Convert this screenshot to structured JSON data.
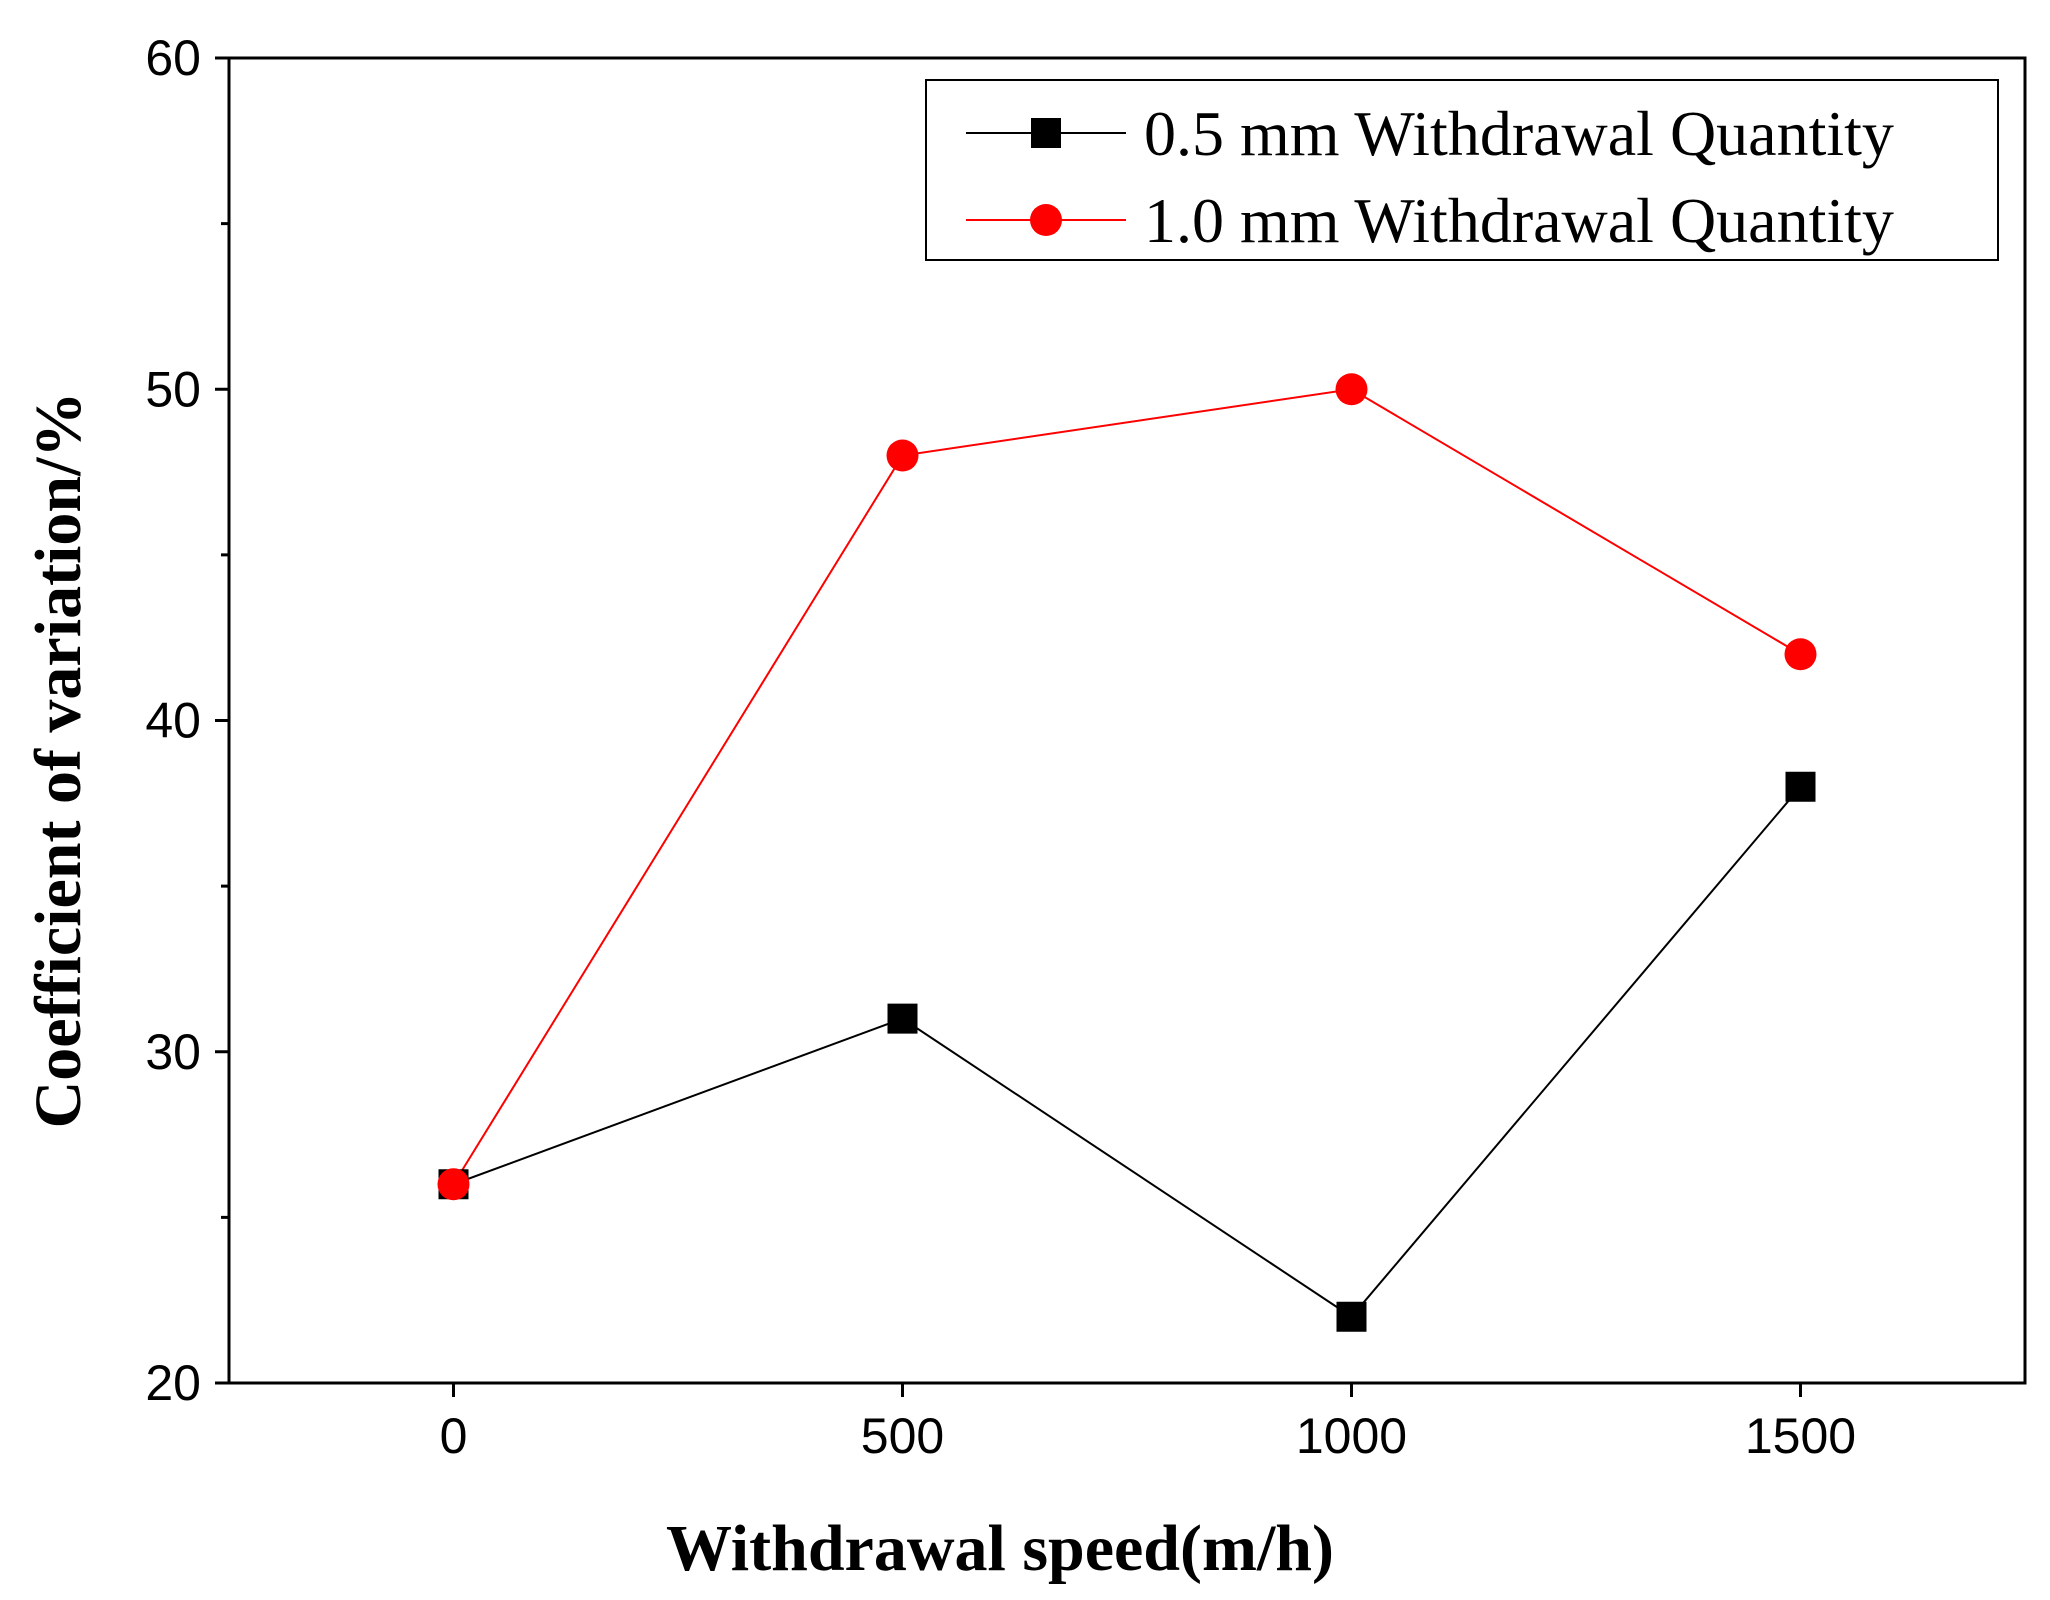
{
  "chart_data": {
    "type": "line",
    "title": "",
    "xlabel": "Withdrawal speed(m/h)",
    "ylabel": "Coefficient of variation/%",
    "x": [
      0,
      500,
      1000,
      1500
    ],
    "xlim": [
      -250,
      1750
    ],
    "ylim": [
      20,
      60
    ],
    "x_ticks": [
      "0",
      "500",
      "1000",
      "1500"
    ],
    "y_ticks": [
      "20",
      "30",
      "40",
      "50",
      "60"
    ],
    "grid": false,
    "legend_position": "top-right",
    "series": [
      {
        "name": "0.5 mm Withdrawal Quantity",
        "values": [
          26,
          31,
          22,
          38
        ],
        "color": "#000000",
        "marker": "square"
      },
      {
        "name": "1.0 mm Withdrawal Quantity",
        "values": [
          26,
          48,
          50,
          42
        ],
        "color": "#ff0000",
        "marker": "circle"
      }
    ]
  }
}
